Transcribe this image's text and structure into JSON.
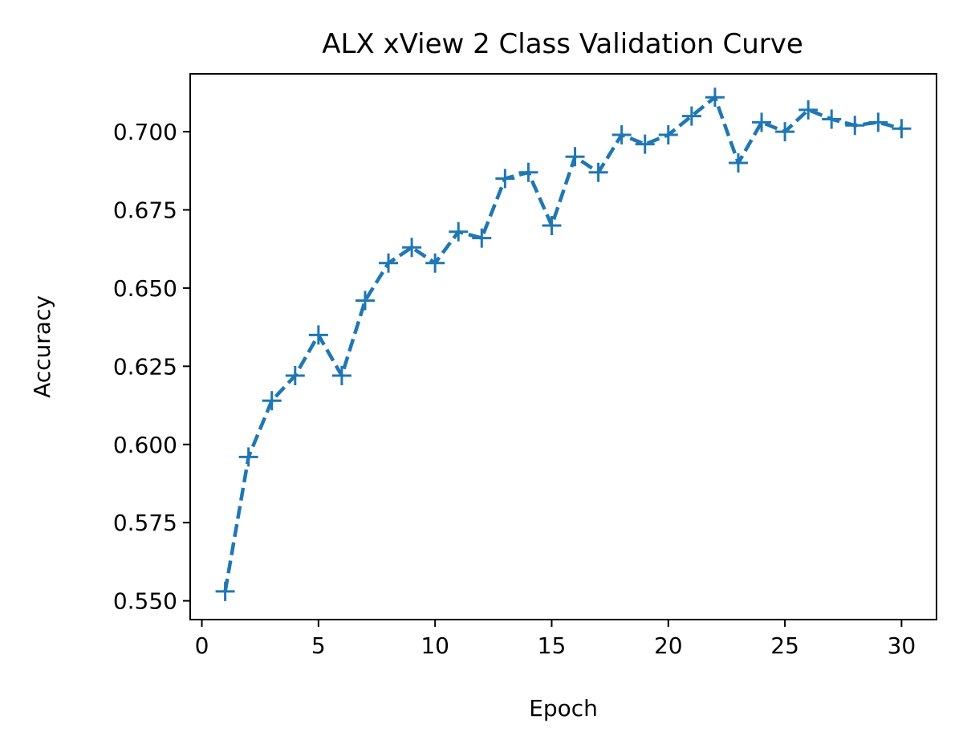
{
  "chart_data": {
    "type": "line",
    "title": "ALX xView 2 Class Validation Curve",
    "xlabel": "Epoch",
    "ylabel": "Accuracy",
    "xlim": [
      -0.5,
      31.5
    ],
    "ylim": [
      0.544,
      0.7185
    ],
    "xticks": [
      0,
      5,
      10,
      15,
      20,
      25,
      30
    ],
    "yticks": [
      0.55,
      0.575,
      0.6,
      0.625,
      0.65,
      0.675,
      0.7
    ],
    "ytick_labels": [
      "0.550",
      "0.575",
      "0.600",
      "0.625",
      "0.650",
      "0.675",
      "0.700"
    ],
    "grid": false,
    "line_style": "dashed",
    "marker": "plus",
    "color": "#1f77b4",
    "series": [
      {
        "x": [
          1,
          2,
          3,
          4,
          5,
          6,
          7,
          8,
          9,
          10,
          11,
          12,
          13,
          14,
          15,
          16,
          17,
          18,
          19,
          20,
          21,
          22,
          23,
          24,
          25,
          26,
          27,
          28,
          29,
          30
        ],
        "y": [
          0.553,
          0.596,
          0.614,
          0.622,
          0.635,
          0.622,
          0.646,
          0.658,
          0.663,
          0.658,
          0.668,
          0.666,
          0.685,
          0.687,
          0.67,
          0.692,
          0.687,
          0.699,
          0.696,
          0.699,
          0.705,
          0.711,
          0.69,
          0.703,
          0.7,
          0.707,
          0.704,
          0.702,
          0.703,
          0.701
        ]
      }
    ]
  }
}
